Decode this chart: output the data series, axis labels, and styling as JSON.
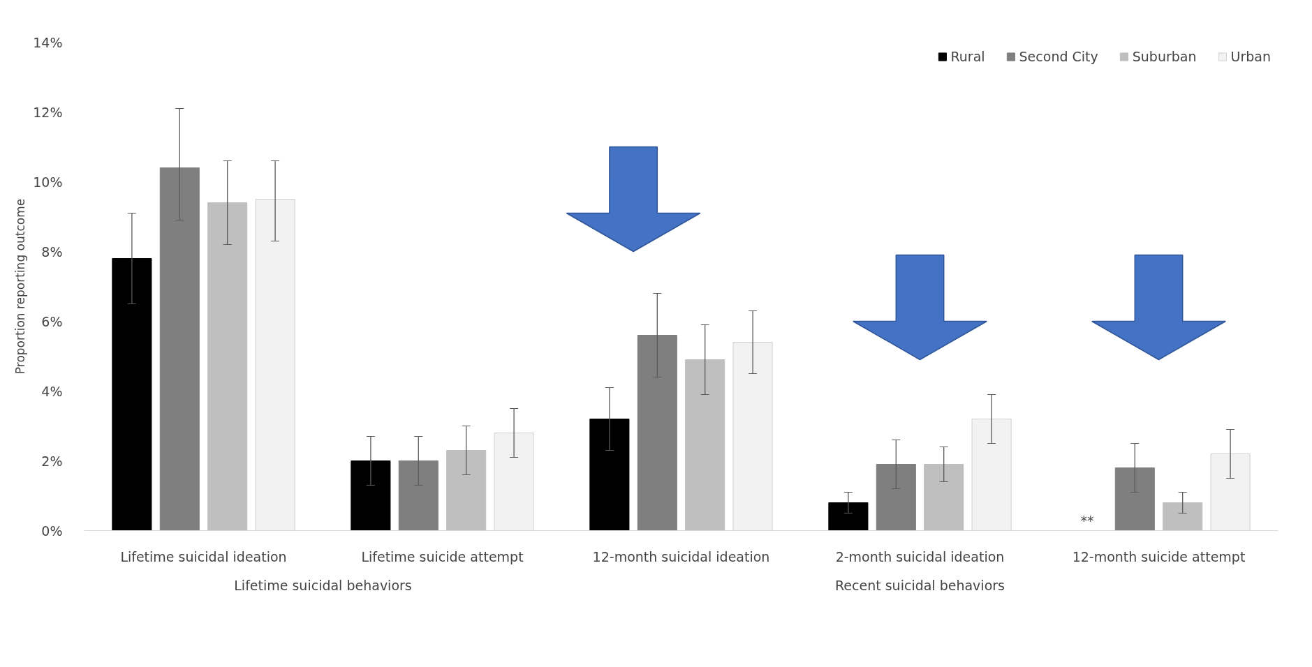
{
  "chart_data": {
    "type": "bar",
    "ylabel": "Proportion reporting outcome",
    "categories": [
      "Lifetime suicidal ideation",
      "Lifetime suicide attempt",
      "12-month suicidal ideation",
      "2-month suicidal ideation",
      "12-month suicide attempt"
    ],
    "series": [
      {
        "name": "Rural",
        "color": "#000000",
        "values": [
          7.8,
          2.0,
          3.2,
          0.8,
          null
        ],
        "errors": [
          [
            6.5,
            9.1
          ],
          [
            1.3,
            2.7
          ],
          [
            2.3,
            4.1
          ],
          [
            0.5,
            1.1
          ],
          null
        ]
      },
      {
        "name": "Second City",
        "color": "#7f7f7f",
        "values": [
          10.4,
          2.0,
          5.6,
          1.9,
          1.8
        ],
        "errors": [
          [
            8.9,
            12.1
          ],
          [
            1.3,
            2.7
          ],
          [
            4.4,
            6.8
          ],
          [
            1.2,
            2.6
          ],
          [
            1.1,
            2.5
          ]
        ]
      },
      {
        "name": "Suburban",
        "color": "#bfbfbf",
        "values": [
          9.4,
          2.3,
          4.9,
          1.9,
          0.8
        ],
        "errors": [
          [
            8.2,
            10.6
          ],
          [
            1.6,
            3.0
          ],
          [
            3.9,
            5.9
          ],
          [
            1.4,
            2.4
          ],
          [
            0.5,
            1.1
          ]
        ]
      },
      {
        "name": "Urban",
        "color": "#f2f2f2",
        "values": [
          9.5,
          2.8,
          5.4,
          3.2,
          2.2
        ],
        "errors": [
          [
            8.3,
            10.6
          ],
          [
            2.1,
            3.5
          ],
          [
            4.5,
            6.3
          ],
          [
            2.5,
            3.9
          ],
          [
            1.5,
            2.9
          ]
        ]
      }
    ],
    "ylim": [
      0,
      14
    ],
    "yticks": [
      {
        "value": 0,
        "label": "0%"
      },
      {
        "value": 2,
        "label": "2%"
      },
      {
        "value": 4,
        "label": "4%"
      },
      {
        "value": 6,
        "label": "6%"
      },
      {
        "value": 8,
        "label": "8%"
      },
      {
        "value": 10,
        "label": "10%"
      },
      {
        "value": 12,
        "label": "12%"
      },
      {
        "value": 14,
        "label": "14%"
      }
    ],
    "annotations": [
      "Lifetime suicidal behaviors",
      "Recent suicidal behaviors",
      "**"
    ],
    "grid": false,
    "legend": "top right"
  }
}
